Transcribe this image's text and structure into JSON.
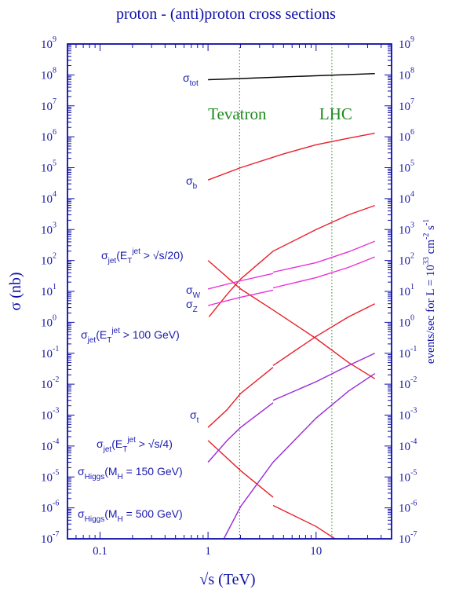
{
  "chart_data": {
    "type": "line",
    "title": "proton - (anti)proton cross sections",
    "xlabel": "√s   (TeV)",
    "ylabel_left": "σ  (nb)",
    "ylabel_right": {
      "prefix": "events/sec  for  L = 10",
      "exp": "33",
      "unit1": " cm",
      "exp2": "-2",
      "unit2": " s",
      "exp3": "-1"
    },
    "x_scale": "log",
    "y_scale": "log",
    "xlim": [
      0.05,
      50
    ],
    "ylim": [
      1e-07,
      1000000000.0
    ],
    "x_ticks": [
      "0.1",
      "1",
      "10"
    ],
    "y_tick_base": "10",
    "y_tick_exponents": [
      "9",
      "8",
      "7",
      "6",
      "5",
      "4",
      "3",
      "2",
      "1",
      "0",
      "-1",
      "-2",
      "-3",
      "-4",
      "-5",
      "-6",
      "-7"
    ],
    "y_right_tick_exponents": [
      "9",
      "8",
      "7",
      "6",
      "5",
      "4",
      "3",
      "2",
      "1",
      "0",
      "-1",
      "-2",
      "-3",
      "-4",
      "-5",
      "-6",
      "-7"
    ],
    "vlines": [
      {
        "name": "Tevatron",
        "x": 1.96,
        "color": "#1e8a1e"
      },
      {
        "name": "LHC",
        "x": 14,
        "color": "#1e8a1e"
      }
    ],
    "series": [
      {
        "key": "tot",
        "color": "#000000",
        "label": {
          "main": "σ",
          "sub": "tot"
        },
        "segments": [
          [
            [
              1,
              70000000.0
            ],
            [
              35,
              110000000.0
            ]
          ]
        ]
      },
      {
        "key": "b",
        "color": "#e8202a",
        "label": {
          "main": "σ",
          "sub": "b"
        },
        "segments": [
          [
            [
              1,
              40000.0
            ],
            [
              2,
              100000.0
            ],
            [
              5,
              280000.0
            ],
            [
              10,
              550000.0
            ],
            [
              20,
              900000.0
            ],
            [
              35,
              1300000.0
            ]
          ]
        ]
      },
      {
        "key": "jet_s20",
        "color": "#e8202a",
        "label": {
          "main": "σ",
          "sub": "jet",
          "rest": "(E",
          "sub2": "T",
          "sup2": "jet",
          "rest2": " > √s/20)"
        },
        "segments": [
          [
            [
              1,
              100.0
            ],
            [
              2,
              12
            ],
            [
              4,
              2.5
            ]
          ],
          [
            [
              4,
              2.5
            ],
            [
              10,
              0.3
            ],
            [
              20,
              0.05
            ],
            [
              35,
              0.015
            ]
          ]
        ]
      },
      {
        "key": "jet_100",
        "color": "#e8202a",
        "label": {
          "main": "σ",
          "sub": "jet",
          "rest": "(E",
          "sub2": "T",
          "sup2": "jet",
          "rest2": " > 100 GeV)"
        },
        "segments": [
          [
            [
              1.02,
              1.5
            ],
            [
              1.5,
              8
            ],
            [
              2,
              25
            ],
            [
              4,
              200.0
            ],
            [
              10,
              1000.0
            ],
            [
              20,
              3000.0
            ],
            [
              35,
              6000.0
            ]
          ]
        ]
      },
      {
        "key": "W",
        "color": "#e832d8",
        "label": {
          "main": "σ",
          "sub": "W"
        },
        "segments": [
          [
            [
              1,
              12
            ],
            [
              2,
              22
            ],
            [
              4,
              38
            ]
          ],
          [
            [
              4,
              42
            ],
            [
              10,
              85
            ],
            [
              20,
              190
            ],
            [
              35,
              420
            ]
          ]
        ]
      },
      {
        "key": "Z",
        "color": "#e832d8",
        "label": {
          "main": "σ",
          "sub": "Z"
        },
        "segments": [
          [
            [
              1,
              3.5
            ],
            [
              2,
              6.5
            ],
            [
              4,
              11
            ]
          ],
          [
            [
              4,
              13
            ],
            [
              10,
              28
            ],
            [
              20,
              60
            ],
            [
              35,
              130
            ]
          ]
        ]
      },
      {
        "key": "t",
        "color": "#e8202a",
        "label": {
          "main": "σ",
          "sub": "t"
        },
        "segments": [
          [
            [
              1,
              0.0004
            ],
            [
              1.5,
              0.0015
            ],
            [
              2,
              0.005
            ],
            [
              4,
              0.035
            ]
          ],
          [
            [
              4,
              0.04
            ],
            [
              10,
              0.35
            ],
            [
              20,
              1.5
            ],
            [
              35,
              4
            ]
          ]
        ]
      },
      {
        "key": "jet_s4",
        "color": "#e8202a",
        "label": {
          "main": "σ",
          "sub": "jet",
          "rest": "(E",
          "sub2": "T",
          "sup2": "jet",
          "rest2": " > √s/4)"
        },
        "segments": [
          [
            [
              1,
              0.00015
            ],
            [
              2,
              1.6e-05
            ],
            [
              4,
              2.2e-06
            ]
          ],
          [
            [
              4,
              1.2e-06
            ],
            [
              10,
              2.5e-07
            ],
            [
              15,
              1e-07
            ]
          ]
        ]
      },
      {
        "key": "H150",
        "color": "#9b2bd8",
        "label": {
          "main": "σ",
          "sub": "Higgs",
          "rest": "(M",
          "sub2": "H",
          "rest2": " = 150 GeV)"
        },
        "segments": [
          [
            [
              1,
              3e-05
            ],
            [
              1.5,
              0.00015
            ],
            [
              2,
              0.0004
            ],
            [
              4,
              0.0025
            ]
          ],
          [
            [
              4,
              0.003
            ],
            [
              10,
              0.012
            ],
            [
              20,
              0.04
            ],
            [
              35,
              0.1
            ]
          ]
        ]
      },
      {
        "key": "H500",
        "color": "#9b2bd8",
        "label": {
          "main": "σ",
          "sub": "Higgs",
          "rest": "(M",
          "sub2": "H",
          "rest2": " = 500 GeV)"
        },
        "segments": [
          [
            [
              1.4,
              1e-07
            ],
            [
              2,
              1.1e-06
            ],
            [
              4,
              3e-05
            ],
            [
              10,
              0.0008
            ],
            [
              20,
              0.006
            ],
            [
              35,
              0.022
            ]
          ]
        ]
      }
    ]
  }
}
